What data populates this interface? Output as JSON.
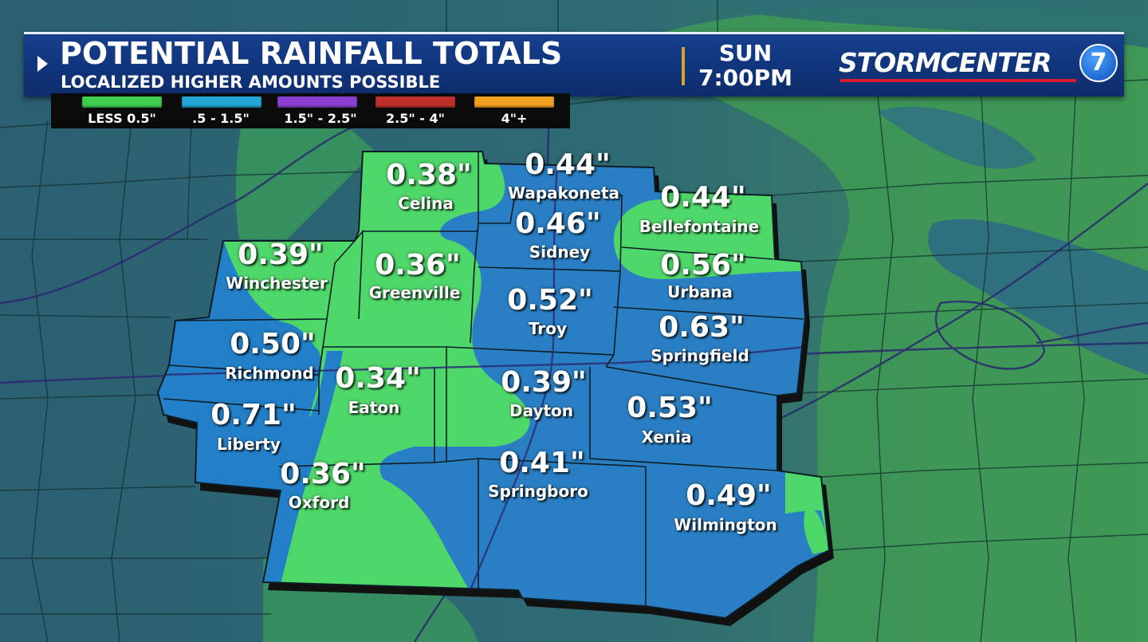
{
  "header": {
    "title": "POTENTIAL RAINFALL TOTALS",
    "subtitle": "LOCALIZED HIGHER AMOUNTS POSSIBLE",
    "day": "SUN",
    "time": "7:00PM",
    "logo_text": "STORMCENTER",
    "logo_number": "7"
  },
  "legend": [
    {
      "label": "LESS 0.5\"",
      "color": "#3fcf4f"
    },
    {
      "label": ".5 - 1.5\"",
      "color": "#23a6d6"
    },
    {
      "label": "1.5\" - 2.5\"",
      "color": "#8a3fd0"
    },
    {
      "label": "2.5\" - 4\"",
      "color": "#c0302a"
    },
    {
      "label": "4\"+",
      "color": "#f0a020"
    }
  ],
  "locations": [
    {
      "name": "Celina",
      "value": "0.38\""
    },
    {
      "name": "Wapakoneta",
      "value": "0.44\""
    },
    {
      "name": "Bellefontaine",
      "value": "0.44\""
    },
    {
      "name": "Sidney",
      "value": "0.46\""
    },
    {
      "name": "Winchester",
      "value": "0.39\""
    },
    {
      "name": "Greenville",
      "value": "0.36\""
    },
    {
      "name": "Troy",
      "value": "0.52\""
    },
    {
      "name": "Urbana",
      "value": "0.56\""
    },
    {
      "name": "Richmond",
      "value": "0.50\""
    },
    {
      "name": "Springfield",
      "value": "0.63\""
    },
    {
      "name": "Eaton",
      "value": "0.34\""
    },
    {
      "name": "Dayton",
      "value": "0.39\""
    },
    {
      "name": "Liberty",
      "value": "0.71\""
    },
    {
      "name": "Xenia",
      "value": "0.53\""
    },
    {
      "name": "Oxford",
      "value": "0.36\""
    },
    {
      "name": "Springboro",
      "value": "0.41\""
    },
    {
      "name": "Wilmington",
      "value": "0.49\""
    }
  ],
  "colors": {
    "rain_light": "#4fd86a",
    "rain_moderate": "#2a7fc4",
    "background_low": "#3f8c66",
    "background_mid": "#2c6a7a",
    "header_bg": "#163f8e",
    "accent_bar": "#d7a22c",
    "logo_red": "#d81e2a"
  }
}
